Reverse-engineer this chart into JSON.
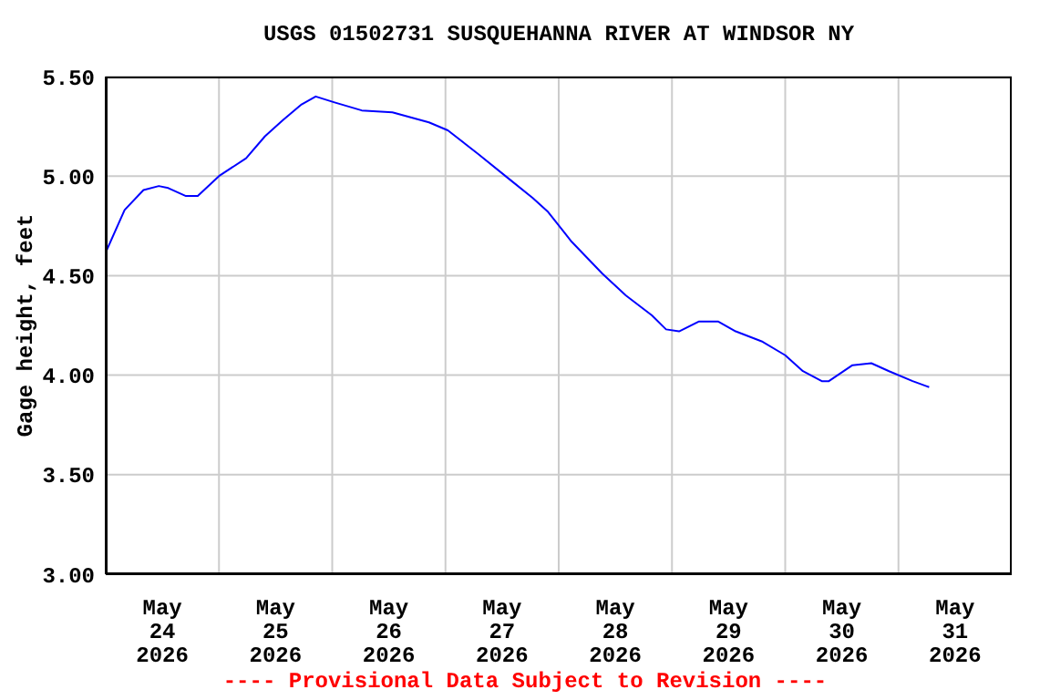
{
  "chart_data": {
    "type": "line",
    "title": "USGS 01502731 SUSQUEHANNA RIVER AT WINDSOR NY",
    "ylabel": "Gage height, feet",
    "annotations": [
      "---- Provisional Data Subject to Revision ----"
    ],
    "x": [
      "2026-05-24T00:15",
      "2026-05-24T04:00",
      "2026-05-24T08:00",
      "2026-05-24T11:15",
      "2026-05-24T13:15",
      "2026-05-24T17:00",
      "2026-05-24T19:30",
      "2026-05-25T00:00",
      "2026-05-25T05:45",
      "2026-05-25T09:45",
      "2026-05-25T13:30",
      "2026-05-25T17:30",
      "2026-05-25T20:30",
      "2026-05-26T00:30",
      "2026-05-26T06:15",
      "2026-05-26T12:45",
      "2026-05-26T20:30",
      "2026-05-27T00:30",
      "2026-05-27T07:00",
      "2026-05-27T13:15",
      "2026-05-27T18:30",
      "2026-05-27T21:45",
      "2026-05-28T02:45",
      "2026-05-28T09:15",
      "2026-05-28T14:15",
      "2026-05-28T19:45",
      "2026-05-28T22:45",
      "2026-05-29T01:30",
      "2026-05-29T05:45",
      "2026-05-29T09:45",
      "2026-05-29T13:30",
      "2026-05-29T19:00",
      "2026-05-30T00:00",
      "2026-05-30T03:45",
      "2026-05-30T07:45",
      "2026-05-30T09:15",
      "2026-05-30T14:15",
      "2026-05-30T18:15",
      "2026-05-30T22:00",
      "2026-05-31T03:00",
      "2026-05-31T06:30"
    ],
    "series": [
      {
        "color": "#0000ff",
        "values": [
          4.63,
          4.83,
          4.93,
          4.95,
          4.94,
          4.9,
          4.9,
          5.0,
          5.09,
          5.2,
          5.28,
          5.36,
          5.4,
          5.37,
          5.33,
          5.32,
          5.27,
          5.23,
          5.11,
          4.99,
          4.89,
          4.82,
          4.67,
          4.51,
          4.4,
          4.3,
          4.23,
          4.22,
          4.27,
          4.27,
          4.22,
          4.17,
          4.1,
          4.02,
          3.97,
          3.97,
          4.05,
          4.06,
          4.02,
          3.97,
          3.94
        ]
      }
    ],
    "xlim": [
      "2026-05-24T00:00",
      "2026-06-01T00:00"
    ],
    "xticks": [
      {
        "value": "2026-05-24T12:00",
        "label": "May\n24\n2026"
      },
      {
        "value": "2026-05-25T00:00",
        "label": null
      },
      {
        "value": "2026-05-25T12:00",
        "label": "May\n25\n2026"
      },
      {
        "value": "2026-05-26T00:00",
        "label": null
      },
      {
        "value": "2026-05-26T12:00",
        "label": "May\n26\n2026"
      },
      {
        "value": "2026-05-27T00:00",
        "label": null
      },
      {
        "value": "2026-05-27T12:00",
        "label": "May\n27\n2026"
      },
      {
        "value": "2026-05-28T00:00",
        "label": null
      },
      {
        "value": "2026-05-28T12:00",
        "label": "May\n28\n2026"
      },
      {
        "value": "2026-05-29T00:00",
        "label": null
      },
      {
        "value": "2026-05-29T12:00",
        "label": "May\n29\n2026"
      },
      {
        "value": "2026-05-30T00:00",
        "label": null
      },
      {
        "value": "2026-05-30T12:00",
        "label": "May\n30\n2026"
      },
      {
        "value": "2026-05-31T00:00",
        "label": null
      },
      {
        "value": "2026-05-31T12:00",
        "label": "May\n31\n2026"
      }
    ],
    "ylim": [
      3.0,
      5.5
    ],
    "yticks": [
      {
        "value": 3.0,
        "label": "3.00"
      },
      {
        "value": 3.5,
        "label": "3.50"
      },
      {
        "value": 4.0,
        "label": "4.00"
      },
      {
        "value": 4.5,
        "label": "4.50"
      },
      {
        "value": 5.0,
        "label": "5.00"
      },
      {
        "value": 5.5,
        "label": "5.50"
      }
    ],
    "grid": true,
    "marker": "none",
    "line_style": "solid"
  }
}
